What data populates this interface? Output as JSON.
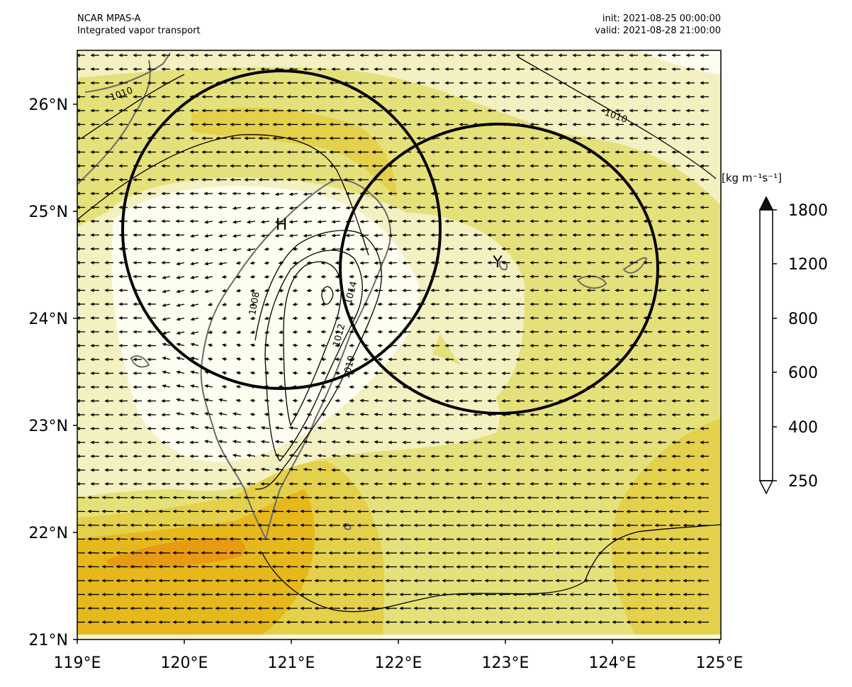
{
  "header": {
    "model": "NCAR MPAS-A",
    "product": "Integrated vapor transport",
    "init": "init: 2021-08-25 00:00:00",
    "valid": "valid: 2021-08-28 21:00:00"
  },
  "axes": {
    "lat_labels": [
      "26°N",
      "25°N",
      "24°N",
      "23°N",
      "22°N",
      "21°N"
    ],
    "lon_labels": [
      "119°E",
      "120°E",
      "121°E",
      "122°E",
      "123°E",
      "124°E",
      "125°E"
    ],
    "lon_range": [
      119,
      125
    ],
    "lat_range": [
      21,
      26.5
    ]
  },
  "markers": {
    "high": "H",
    "typhoon": "Y"
  },
  "contour_labels": [
    "1010",
    "1010",
    "1008",
    "1014",
    "1012",
    "1010"
  ],
  "colorbar": {
    "unit": "[kg m⁻¹s⁻¹]",
    "tick_labels": [
      "1800",
      "1200",
      "800",
      "600",
      "400",
      "250"
    ],
    "levels": [
      250,
      300,
      400,
      500,
      600,
      700,
      800,
      1000,
      1200,
      1500,
      1800
    ],
    "colors": [
      "#fdfdf0",
      "#f3f1c2",
      "#e5e17a",
      "#e4d04a",
      "#e6b81c",
      "#e89a12",
      "#ee6e0f",
      "#db3a47",
      "#7a32a5",
      "#2a2a8c"
    ]
  },
  "map_colors": {
    "ivt_250": "#fdfdf0",
    "ivt_300": "#f3f1c2",
    "ivt_400": "#e5e17a",
    "ivt_500": "#e4d04a",
    "ivt_600": "#e6b81c",
    "ivt_700": "#e89a12"
  },
  "chart_data": {
    "type": "heatmap",
    "variable": "Integrated vapor transport",
    "unit": "kg m-1 s-1",
    "colorbar_ticks": [
      250,
      400,
      600,
      800,
      1200,
      1800
    ],
    "pressure_contours_hPa": [
      1008,
      1010,
      1012,
      1014
    ],
    "circles": [
      {
        "label": "H",
        "center_lon": 120.9,
        "center_lat": 24.85
      },
      {
        "label": "Y",
        "center_lon": 122.95,
        "center_lat": 24.45
      }
    ]
  }
}
